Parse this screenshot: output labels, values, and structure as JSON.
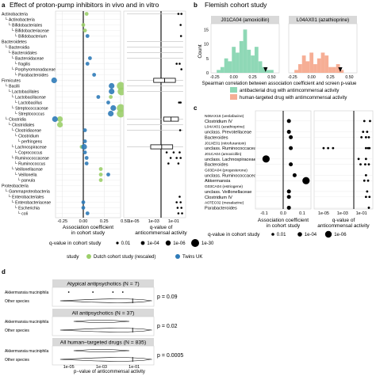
{
  "panel_a": {
    "letter": "a",
    "title": "Effect of proton-pump inhibitors in vivo and in vitro",
    "taxa": [
      {
        "label": "Actinobacteria",
        "indent": 0
      },
      {
        "label": "Actinobacteria",
        "indent": 1
      },
      {
        "label": "Bifidobacteriales",
        "indent": 2
      },
      {
        "label": "Bifidobacteriaceae",
        "indent": 3
      },
      {
        "label": "Bifidobacterium",
        "indent": 4
      },
      {
        "label": "Bacteroidetes",
        "indent": 0
      },
      {
        "label": "Bacteroidia",
        "indent": 1
      },
      {
        "label": "Bacteroidales",
        "indent": 2
      },
      {
        "label": "Bacteroidaceae",
        "indent": 3
      },
      {
        "label": "fragilis",
        "indent": 4
      },
      {
        "label": "Porphyromonadaceae",
        "indent": 3
      },
      {
        "label": "Parabacteroides",
        "indent": 4
      },
      {
        "label": "Firmicutes",
        "indent": 0
      },
      {
        "label": "Bacilli",
        "indent": 1
      },
      {
        "label": "Lactobacillales",
        "indent": 2
      },
      {
        "label": "Lactobacillaceae",
        "indent": 3
      },
      {
        "label": "Lactobacillus",
        "indent": 4
      },
      {
        "label": "Streptococcaceae",
        "indent": 3
      },
      {
        "label": "Streptococcus",
        "indent": 4
      },
      {
        "label": "Clostridia",
        "indent": 1
      },
      {
        "label": "Clostridiales",
        "indent": 2
      },
      {
        "label": "Clostridiaceae",
        "indent": 3
      },
      {
        "label": "Clostridium",
        "indent": 4
      },
      {
        "label": "perfringens",
        "indent": 5
      },
      {
        "label": "Lachnospiraceae",
        "indent": 3
      },
      {
        "label": "Coprococcus",
        "indent": 4
      },
      {
        "label": "Ruminococcaceae",
        "indent": 3
      },
      {
        "label": "Ruminococcus",
        "indent": 4
      },
      {
        "label": "Veillonellaceae",
        "indent": 3
      },
      {
        "label": "Veillonella",
        "indent": 4
      },
      {
        "label": "parvula",
        "indent": 5
      },
      {
        "label": "Proteobacteria",
        "indent": 0
      },
      {
        "label": "Gammaproteobacteria",
        "indent": 1
      },
      {
        "label": "Enterobacteriales",
        "indent": 2
      },
      {
        "label": "Enterobacteriaceae",
        "indent": 3
      },
      {
        "label": "Escherichia",
        "indent": 4
      },
      {
        "label": "coli",
        "indent": 5
      }
    ],
    "ticks_left": [
      "-0.25",
      "0.00",
      "0.25",
      "0.50"
    ],
    "xlabel_left": "Association coefficient\nin cohort study",
    "ticks_right": [
      "1e-05",
      "1e-03",
      "1e-01"
    ],
    "xlabel_right": "q-value of\nanticommensal activity",
    "size_legend_title": "q-value in cohort study",
    "size_legend": [
      "0.01",
      "1e-04",
      "1e-06",
      "1e-30"
    ],
    "color_legend_title": "study",
    "color_legend": [
      {
        "label": "Dutch cohort study (rescaled)",
        "color": "#9ccf6a"
      },
      {
        "label": "Twins UK",
        "color": "#2f7bb8"
      }
    ]
  },
  "panel_b": {
    "letter": "b",
    "title": "Flemish cohort study",
    "hist1_label": "J01CA04 (amoxicillin)",
    "hist2_label": "L04AX01 (azathioprine)",
    "ylabel": "Count",
    "yticks": [
      "0",
      "5",
      "10",
      "15"
    ],
    "xticks": [
      "-0.25",
      "0.00",
      "0.25",
      "0.50"
    ],
    "xlabel": "Spearman correlation between association coefficient and screen p-value",
    "legend": [
      {
        "label": "antibacterial drug with antimcommensal activity",
        "color": "#8fd8b6"
      },
      {
        "label": "human-targeted drug with antimcommensal activity",
        "color": "#f6ae95"
      }
    ]
  },
  "panel_c": {
    "letter": "c",
    "rows": [
      {
        "label": "N06AX16 (venlafaxine)",
        "font": "small"
      },
      {
        "label": "Clostridium IV",
        "font": "normal"
      },
      {
        "label": "L04AX01 (azathioprine)",
        "font": "small"
      },
      {
        "label": "unclass. Prevotellaceae",
        "font": "normal"
      },
      {
        "label": "Bacteroides",
        "font": "normal"
      },
      {
        "label": "J01XE01 (nitrofurantoin)",
        "font": "small"
      },
      {
        "label": "unclass. Ruminococcaceae",
        "font": "normal"
      },
      {
        "label": "J01CA04 (amoxicillin)",
        "font": "small"
      },
      {
        "label": "unclass. Lachnospiraceae",
        "font": "normal"
      },
      {
        "label": "Bacteroides",
        "font": "normal"
      },
      {
        "label": "G03DA04 (progesterone)",
        "font": "small"
      },
      {
        "label": "unclass. Ruminococcaceae",
        "font": "normal"
      },
      {
        "label": "Akkermansia",
        "font": "normal"
      },
      {
        "label": "G03CA04 (estriogene)",
        "font": "small"
      },
      {
        "label": "unclass. Veillonellaceae",
        "font": "normal"
      },
      {
        "label": "Clostridium IV",
        "font": "normal"
      },
      {
        "label": "A07EC02 (mesalazine)",
        "font": "small"
      },
      {
        "label": "Parabacteroides",
        "font": "normal"
      }
    ],
    "ticks_left": [
      "-0.1",
      "0.0",
      "0.1"
    ],
    "xlabel_left": "Association coefficient\nin cohort study",
    "ticks_right": [
      "1e-05",
      "1e-03",
      "1e-01"
    ],
    "xlabel_right": "q-value of\nanticommensal activity",
    "legend_title": "q-value in cohort study",
    "legend": [
      "0.01",
      "1e-04",
      "1e-06"
    ]
  },
  "panel_d": {
    "letter": "d",
    "facets": [
      {
        "title": "Atypical antipsychotics (N = 7)",
        "pvalue": "p = 0.09"
      },
      {
        "title": "All antipsychotics (N = 37)",
        "pvalue": "p = 0.02"
      },
      {
        "title": "All human−targeted drugs (N = 835)",
        "pvalue": "p = 0.0005"
      }
    ],
    "row1": "Akkermansia muciniphila",
    "row2": "Other species",
    "xticks": [
      "1e-05",
      "1e-03",
      "1e-01"
    ],
    "xlabel": "p−value of anticommensal activity"
  },
  "chart_data": [
    {
      "type": "scatter",
      "panel": "a",
      "title": "Effect of proton-pump inhibitors in vivo and in vitro",
      "xlabel": "Association coefficient in cohort study",
      "xlim": [
        -0.4,
        0.62
      ],
      "series": [
        {
          "name": "Dutch cohort study (rescaled)",
          "color": "#9ccf6a",
          "points": [
            {
              "taxon": "Actinobacteria",
              "x": 0.04,
              "size": 1
            },
            {
              "taxon": "Bifidobacteriales",
              "x": 0.0,
              "size": 1
            },
            {
              "taxon": "Bifidobacteriaceae",
              "x": 0.02,
              "size": 1
            },
            {
              "taxon": "Bacilli",
              "x": 0.45,
              "size": 3
            },
            {
              "taxon": "Lactobacillales",
              "x": 0.46,
              "size": 3
            },
            {
              "taxon": "Lactobacillaceae",
              "x": 0.33,
              "size": 1
            },
            {
              "taxon": "Streptococcaceae",
              "x": 0.45,
              "size": 3
            },
            {
              "taxon": "Streptococcus",
              "x": 0.45,
              "size": 3
            },
            {
              "taxon": "Clostridia",
              "x": -0.28,
              "size": 2
            },
            {
              "taxon": "Clostridiales",
              "x": -0.28,
              "size": 2
            },
            {
              "taxon": "Lachnospiraceae",
              "x": -0.02,
              "size": 1
            },
            {
              "taxon": "Veillonellaceae",
              "x": 0.21,
              "size": 1
            },
            {
              "taxon": "Veillonella",
              "x": 0.21,
              "size": 1
            },
            {
              "taxon": "parvula",
              "x": 0.21,
              "size": 1
            }
          ]
        },
        {
          "name": "Twins UK",
          "color": "#2f7bb8",
          "points": [
            {
              "taxon": "Bifidobacterium",
              "x": 0.05,
              "size": 1
            },
            {
              "taxon": "Bacteroidaceae",
              "x": 0.08,
              "size": 1
            },
            {
              "taxon": "fragilis",
              "x": 0.05,
              "size": 1
            },
            {
              "taxon": "Parabacteroides",
              "x": 0.13,
              "size": 1
            },
            {
              "taxon": "Firmicutes",
              "x": -0.35,
              "size": 2
            },
            {
              "taxon": "Bacilli",
              "x": 0.34,
              "size": 2
            },
            {
              "taxon": "Lactobacillales",
              "x": 0.34,
              "size": 2
            },
            {
              "taxon": "Lactobacillaceae",
              "x": 0.18,
              "size": 1
            },
            {
              "taxon": "Lactobacillus",
              "x": 0.3,
              "size": 1
            },
            {
              "taxon": "Streptococcaceae",
              "x": 0.36,
              "size": 2
            },
            {
              "taxon": "Streptococcus",
              "x": 0.33,
              "size": 2
            },
            {
              "taxon": "Clostridia",
              "x": -0.34,
              "size": 2
            },
            {
              "taxon": "Clostridiaceae",
              "x": 0.02,
              "size": 1
            },
            {
              "taxon": "perfringens",
              "x": 0.02,
              "size": 1
            },
            {
              "taxon": "Lachnospiraceae",
              "x": 0.01,
              "size": 2
            },
            {
              "taxon": "Coprococcus",
              "x": 0.02,
              "size": 1
            },
            {
              "taxon": "Ruminococcaceae",
              "x": 0.04,
              "size": 1
            },
            {
              "taxon": "Ruminococcus",
              "x": 0.04,
              "size": 1
            },
            {
              "taxon": "Veillonella",
              "x": 0.3,
              "size": 1
            },
            {
              "taxon": "Enterobacteriaceae",
              "x": 0.0,
              "size": 1
            },
            {
              "taxon": "Escherichia",
              "x": 0.0,
              "size": 1
            },
            {
              "taxon": "coli",
              "x": 0.05,
              "size": 1
            }
          ]
        }
      ]
    },
    {
      "type": "bar",
      "panel": "b",
      "title": "J01CA04 (amoxicillin)",
      "x": [
        -0.2,
        -0.15,
        -0.1,
        -0.05,
        0.0,
        0.05,
        0.1,
        0.15,
        0.2,
        0.25,
        0.3,
        0.35,
        0.4,
        0.45,
        0.5
      ],
      "values": [
        1,
        2,
        5,
        4,
        9,
        7,
        11,
        15,
        8,
        6,
        9,
        4,
        2,
        1,
        1
      ],
      "marker_x": 0.42,
      "ylim": [
        0,
        17
      ]
    },
    {
      "type": "bar",
      "panel": "b",
      "title": "L04AX01 (azathioprine)",
      "x": [
        -0.2,
        -0.15,
        -0.1,
        -0.05,
        0.0,
        0.05,
        0.1,
        0.15,
        0.2,
        0.25,
        0.3,
        0.35,
        0.4
      ],
      "values": [
        1,
        3,
        6,
        4,
        7,
        3,
        5,
        7,
        6,
        2,
        2,
        3,
        1
      ],
      "marker_x": 0.38,
      "ylim": [
        0,
        17
      ]
    },
    {
      "type": "scatter",
      "panel": "c",
      "xlabel": "Association coefficient in cohort study",
      "xlim": [
        -0.13,
        0.16
      ],
      "points": [
        {
          "row": "Clostridium IV",
          "x": 0.03,
          "size": 1
        },
        {
          "row": "unclass. Prevotellaceae",
          "x": 0.03,
          "size": 1
        },
        {
          "row": "Bacteroides",
          "x": 0.04,
          "size": 1
        },
        {
          "row": "unclass. Ruminococcaceae",
          "x": 0.04,
          "size": 1
        },
        {
          "row": "unclass. Lachnospiraceae",
          "x": -0.09,
          "size": 2
        },
        {
          "row": "Bacteroides",
          "x": 0.04,
          "size": 1
        },
        {
          "row": "unclass. Ruminococcaceae",
          "x": 0.06,
          "size": 1
        },
        {
          "row": "Akkermansia",
          "x": 0.12,
          "size": 2
        },
        {
          "row": "unclass. Veillonellaceae",
          "x": 0.03,
          "size": 1
        },
        {
          "row": "Clostridium IV",
          "x": 0.03,
          "size": 1
        },
        {
          "row": "Parabacteroides",
          "x": 0.03,
          "size": 1
        }
      ]
    },
    {
      "type": "box",
      "panel": "d",
      "xlabel": "p−value of anticommensal activity",
      "facets": [
        {
          "title": "Atypical antipsychotics (N = 7)",
          "p": 0.09
        },
        {
          "title": "All antipsychotics (N = 37)",
          "p": 0.02
        },
        {
          "title": "All human−targeted drugs (N = 835)",
          "p": 0.0005
        }
      ]
    }
  ]
}
